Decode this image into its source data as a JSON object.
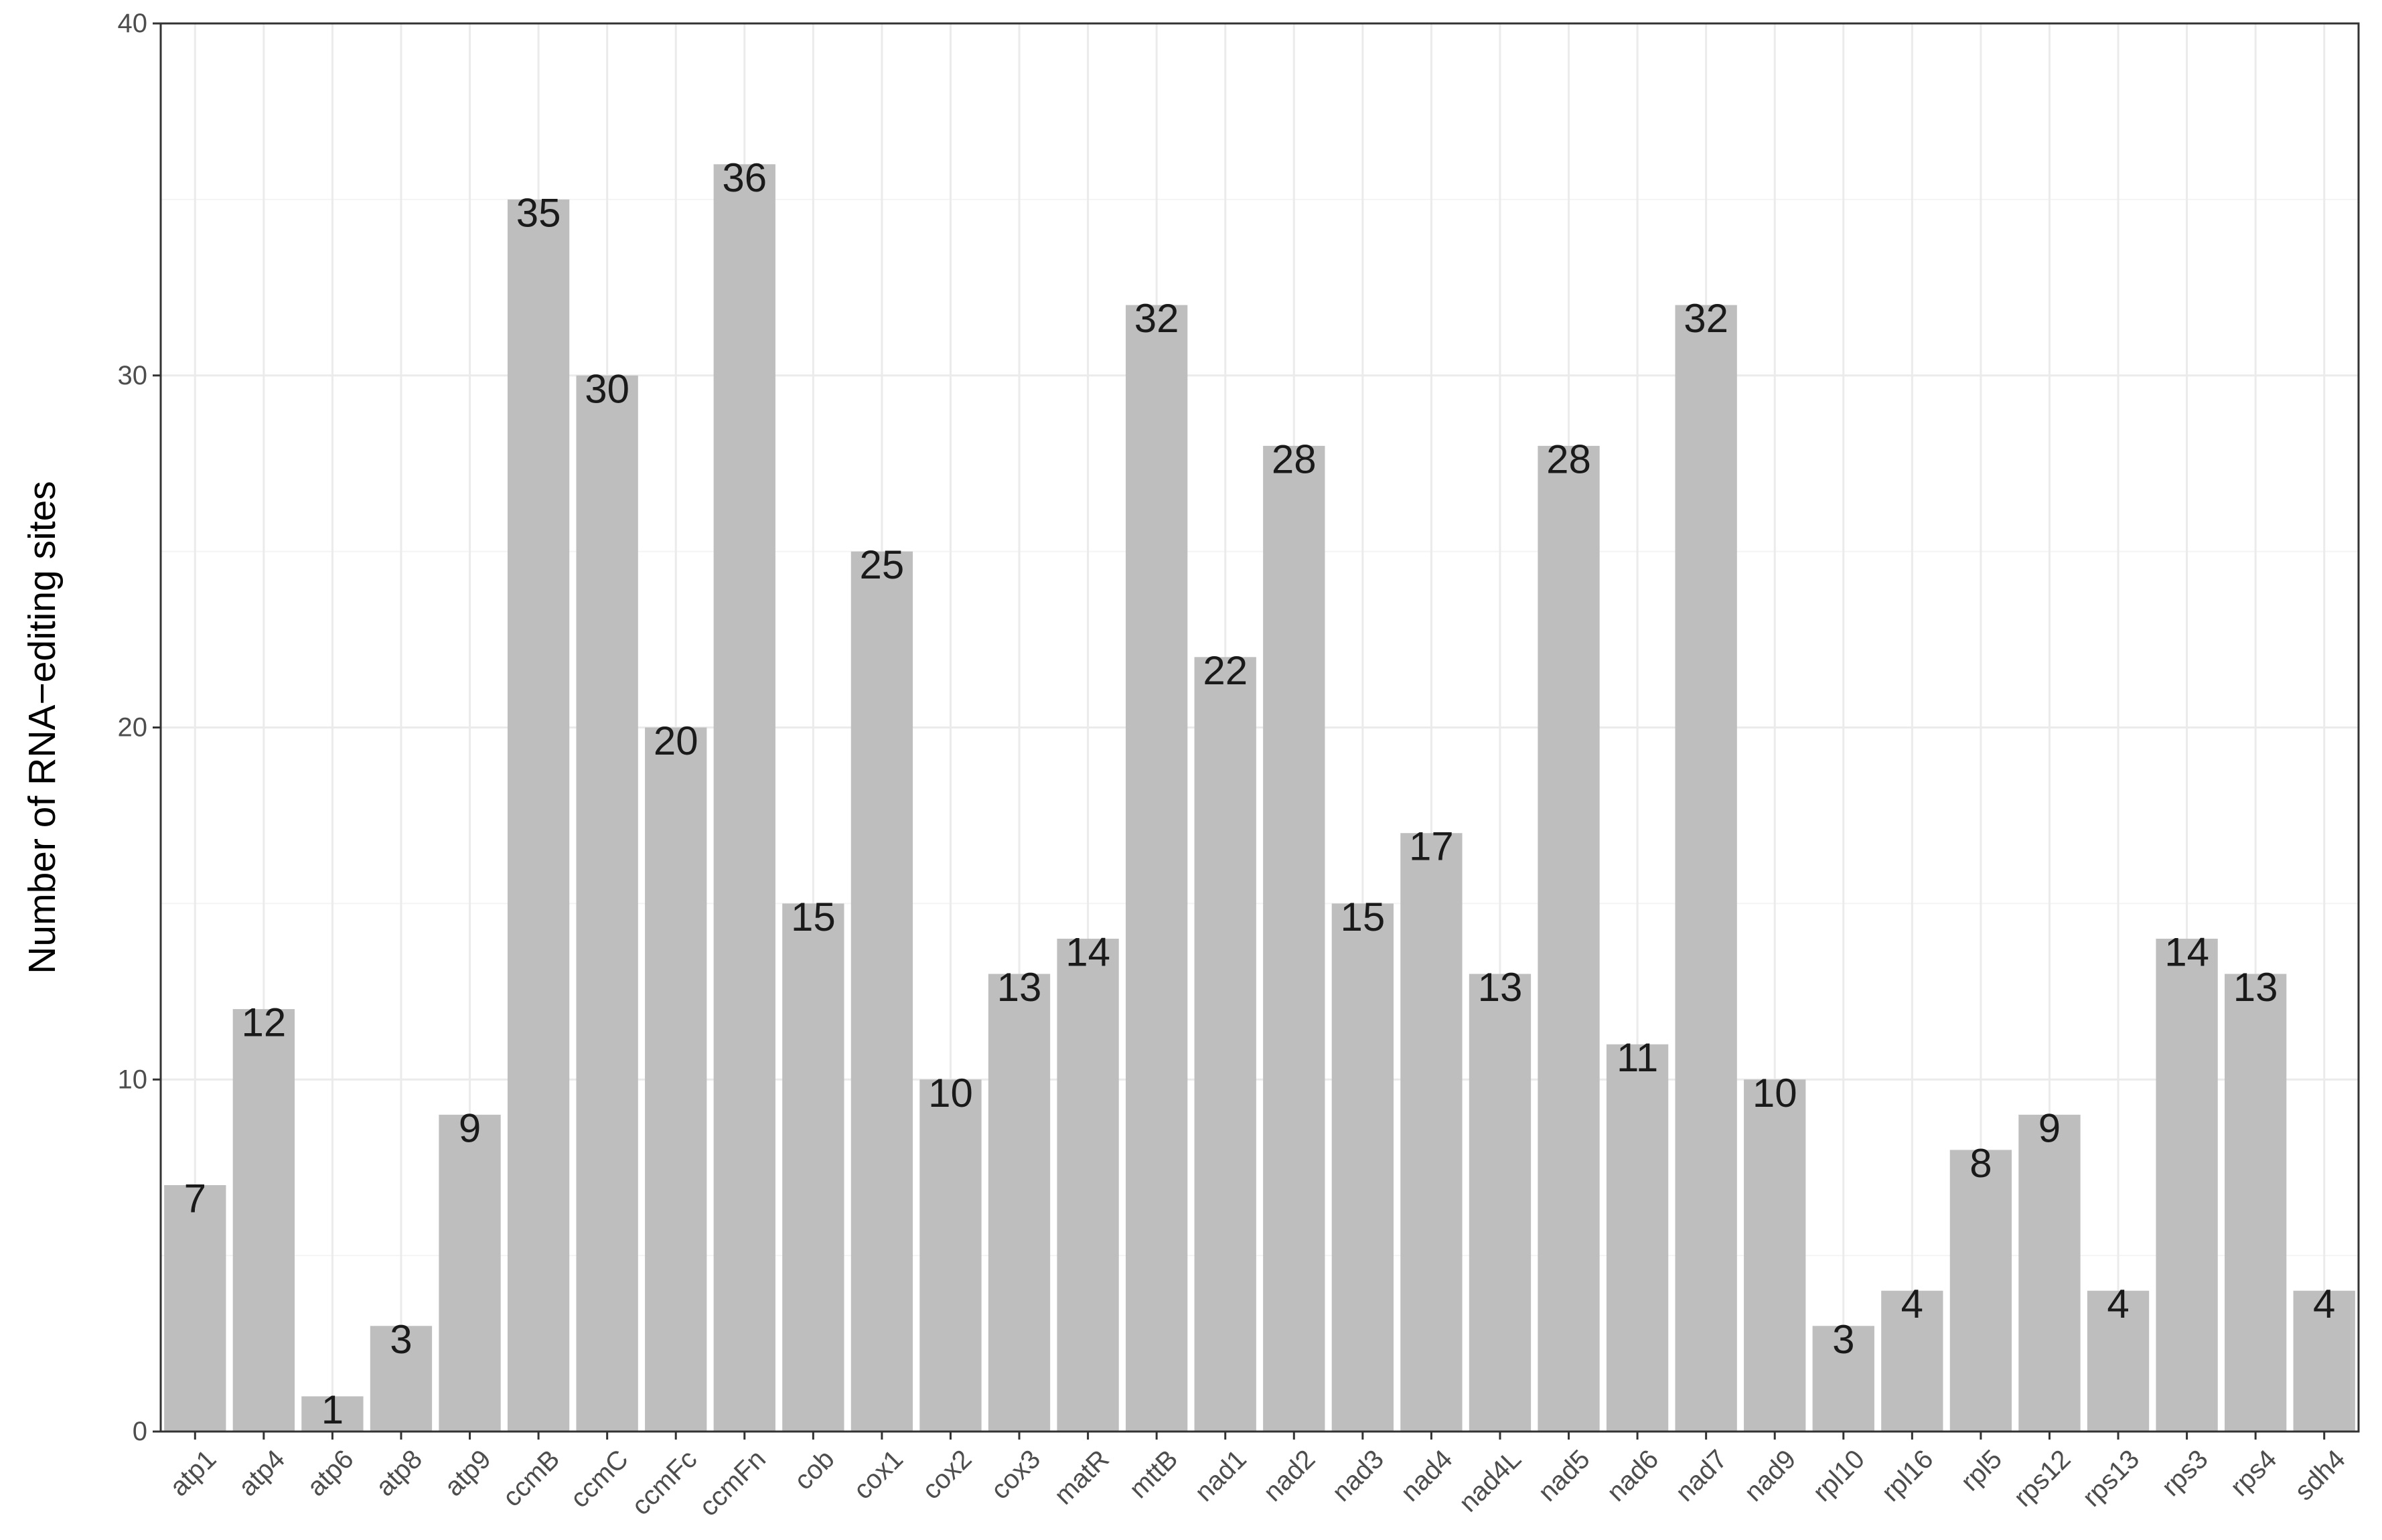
{
  "chart_data": {
    "type": "bar",
    "categories": [
      "atp1",
      "atp4",
      "atp6",
      "atp8",
      "atp9",
      "ccmB",
      "ccmC",
      "ccmFc",
      "ccmFn",
      "cob",
      "cox1",
      "cox2",
      "cox3",
      "matR",
      "mttB",
      "nad1",
      "nad2",
      "nad3",
      "nad4",
      "nad4L",
      "nad5",
      "nad6",
      "nad7",
      "nad9",
      "rpl10",
      "rpl16",
      "rpl5",
      "rps12",
      "rps13",
      "rps3",
      "rps4",
      "sdh4"
    ],
    "values": [
      7,
      12,
      1,
      3,
      9,
      35,
      30,
      20,
      36,
      15,
      25,
      10,
      13,
      14,
      32,
      22,
      28,
      15,
      17,
      13,
      28,
      11,
      32,
      10,
      3,
      4,
      8,
      9,
      4,
      14,
      13,
      4
    ],
    "title": "",
    "xlabel": "",
    "ylabel": "Number of RNA−editing sites",
    "ylim": [
      0,
      40
    ],
    "yticks": [
      0,
      10,
      20,
      30,
      40
    ],
    "grid": true,
    "colors": {
      "bar": "#bebebe",
      "panel_border": "#333333",
      "label_text": "#1a1a1a"
    }
  }
}
